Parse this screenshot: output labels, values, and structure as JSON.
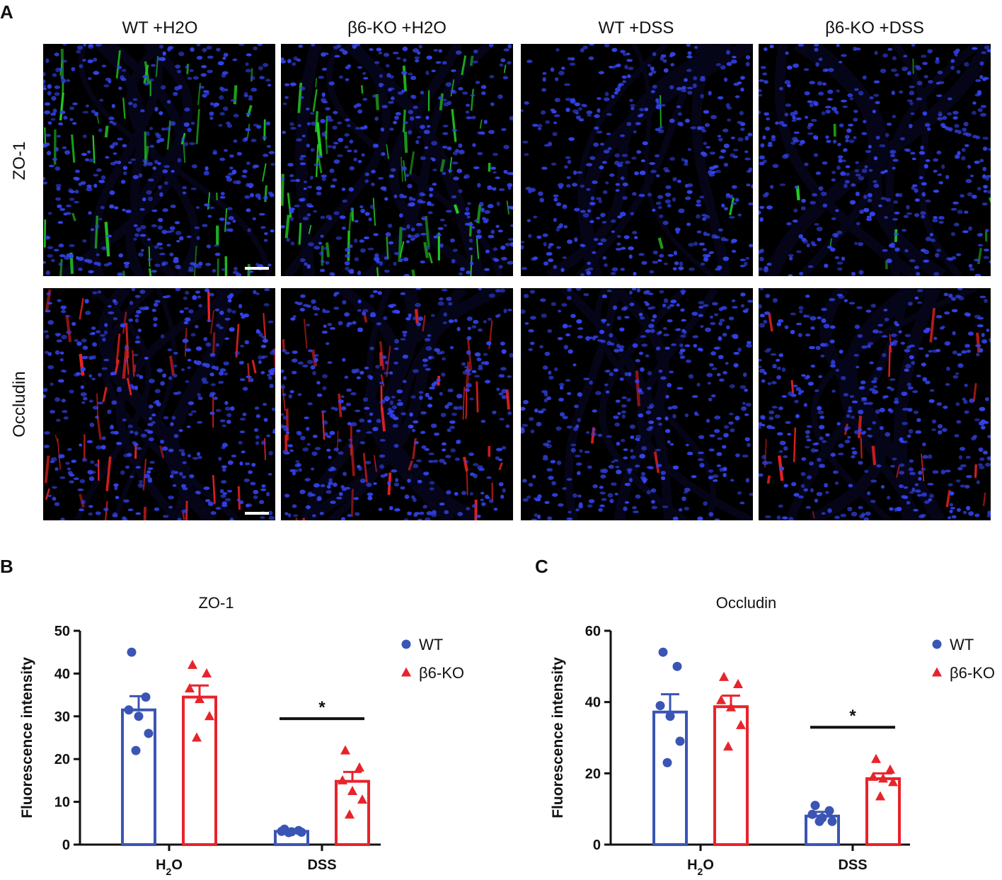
{
  "panels": {
    "a": "A",
    "b": "B",
    "c": "C"
  },
  "micrographs": {
    "columns": [
      "WT +H2O",
      "β6-KO +H2O",
      "WT +DSS",
      "β6-KO +DSS"
    ],
    "rows": [
      "ZO-1",
      "Occludin"
    ],
    "row_colors": {
      "ZO-1": "#22cc22",
      "Occludin": "#ee2222"
    },
    "nuclear_color": "#3344ee",
    "marker_intensity": [
      [
        0.8,
        0.95,
        0.05,
        0.15
      ],
      [
        0.75,
        0.7,
        0.05,
        0.35
      ]
    ]
  },
  "chart_data": [
    {
      "type": "bar",
      "title": "ZO-1",
      "ylabel": "Fluorescence intensity",
      "categories": [
        "H2O",
        "DSS"
      ],
      "category_labels": [
        {
          "base": "H",
          "sub": "2",
          "rest": "O"
        },
        {
          "base": "DSS",
          "sub": "",
          "rest": ""
        }
      ],
      "ylim": [
        0,
        50
      ],
      "yticks": [
        "0",
        "10",
        "20",
        "30",
        "40",
        "50"
      ],
      "significance": {
        "category": "DSS",
        "label": "*"
      },
      "legend_position": "top-right",
      "series": [
        {
          "name": "WT",
          "color": "#3a55b4",
          "marker": "circle",
          "values": [
            31.5,
            3.1
          ],
          "sem": [
            3.2,
            0.3
          ],
          "points": [
            [
              45,
              34.5,
              31.5,
              30,
              26,
              22
            ],
            [
              3.6,
              3.3,
              3.1,
              3.0,
              2.9,
              2.8
            ]
          ]
        },
        {
          "name": "β6-KO",
          "color": "#e8232a",
          "marker": "triangle",
          "values": [
            34.5,
            14.8
          ],
          "sem": [
            2.7,
            2.2
          ],
          "points": [
            [
              42,
              40,
              36.5,
              34,
              30,
              25
            ],
            [
              22,
              18,
              15,
              12.5,
              10.5,
              7
            ]
          ]
        }
      ]
    },
    {
      "type": "bar",
      "title": "Occludin",
      "ylabel": "Fluorescence intensity",
      "categories": [
        "H2O",
        "DSS"
      ],
      "category_labels": [
        {
          "base": "H",
          "sub": "2",
          "rest": "O"
        },
        {
          "base": "DSS",
          "sub": "",
          "rest": ""
        }
      ],
      "ylim": [
        0,
        60
      ],
      "yticks": [
        "0",
        "20",
        "40",
        "60"
      ],
      "significance": {
        "category": "DSS",
        "label": "*"
      },
      "legend_position": "top-right",
      "series": [
        {
          "name": "WT",
          "color": "#3a55b4",
          "marker": "circle",
          "values": [
            37.2,
            8.0
          ],
          "sem": [
            5.0,
            1.2
          ],
          "points": [
            [
              54,
              50,
              39,
              36,
              29,
              23
            ],
            [
              11,
              9.5,
              8.5,
              7.5,
              6.5,
              6.5
            ]
          ]
        },
        {
          "name": "β6-KO",
          "color": "#e8232a",
          "marker": "triangle",
          "values": [
            38.7,
            18.5
          ],
          "sem": [
            3.1,
            1.5
          ],
          "points": [
            [
              47,
              45,
              40.5,
              38.5,
              33.5,
              27.5
            ],
            [
              24,
              21,
              19,
              18.5,
              17.5,
              13.5
            ]
          ]
        }
      ]
    }
  ]
}
